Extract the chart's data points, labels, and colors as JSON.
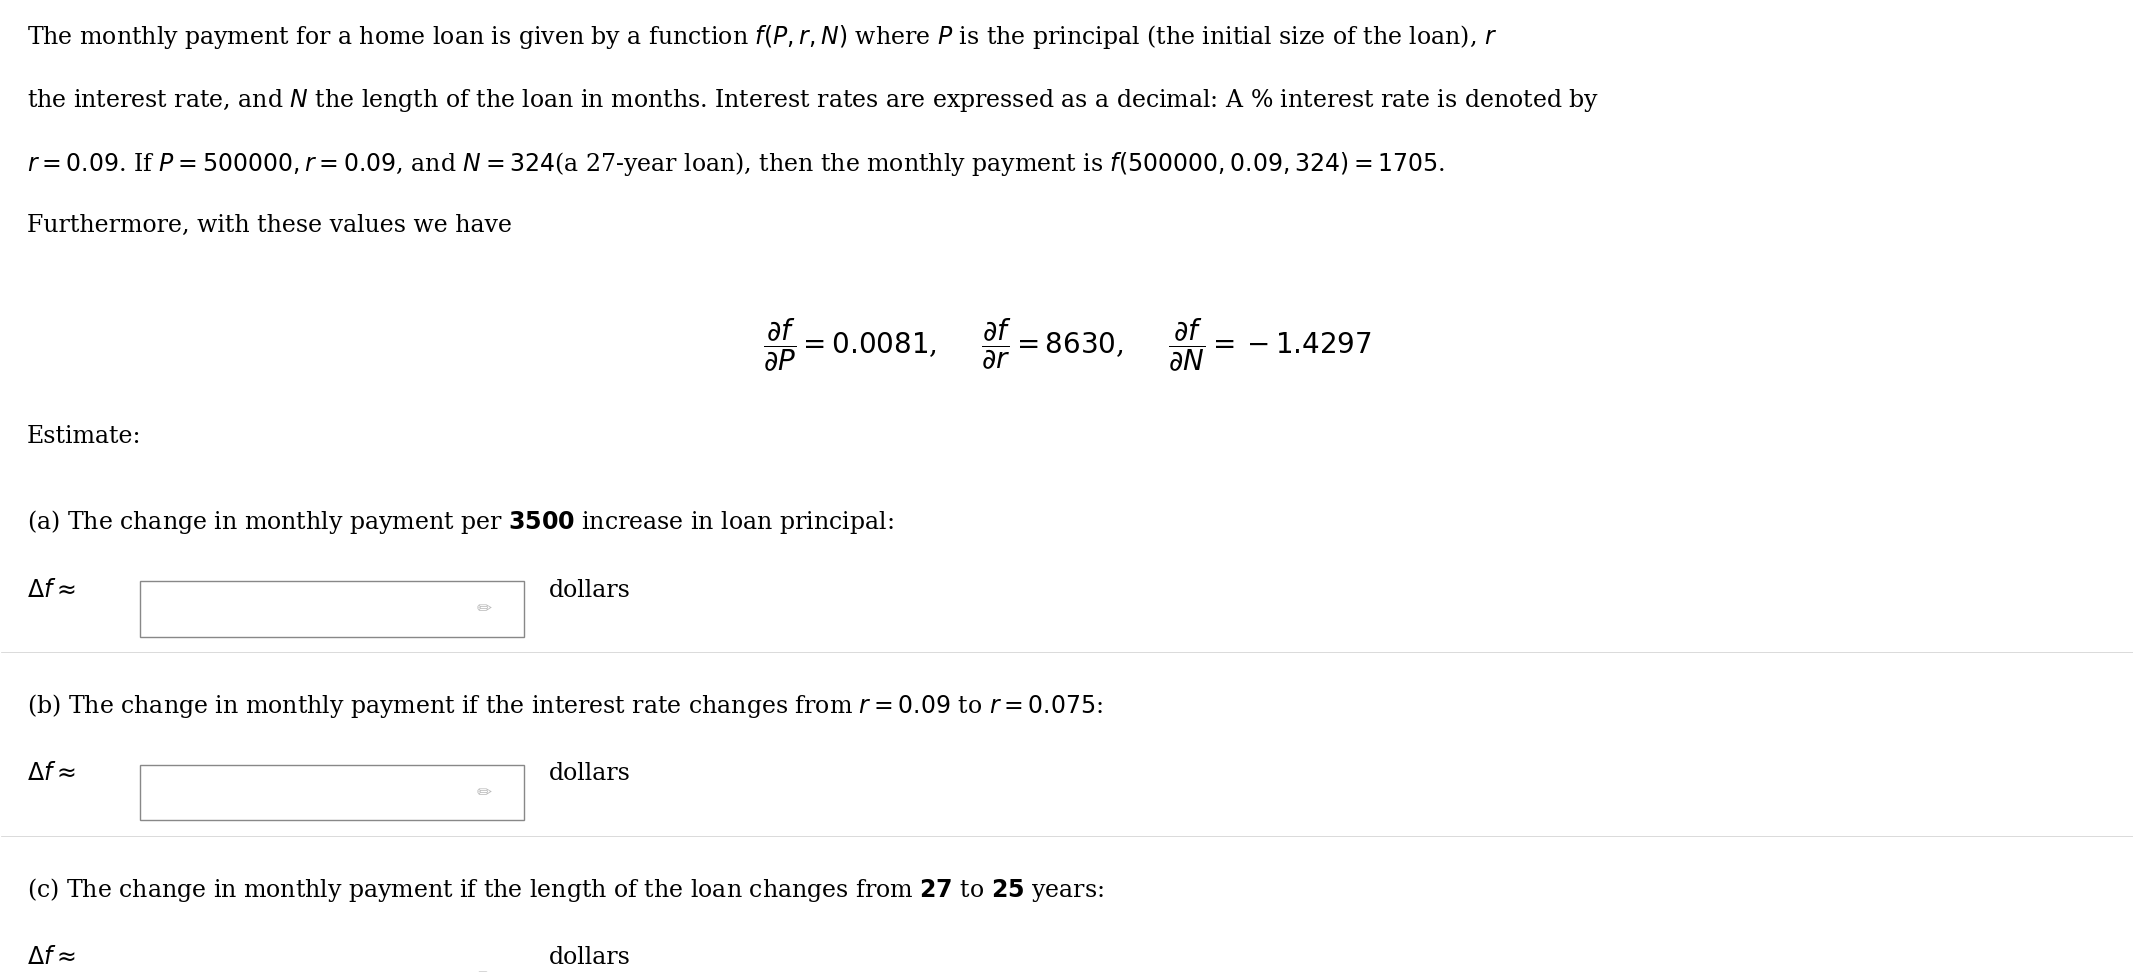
{
  "background_color": "#ffffff",
  "figsize": [
    21.34,
    9.72
  ],
  "dpi": 100,
  "paragraph1": "The monthly payment for a home loan is given by a function $f(P, r, N)$ where $P$ is the principal (the initial size of the loan), $r$",
  "paragraph2": "the interest rate, and $N$ the length of the loan in months. Interest rates are expressed as a decimal: A % interest rate is denoted by",
  "paragraph3": "$r = 0.09$. If $P = 500000, r = 0.09$, and $N = 324$(a 27-year loan), then the monthly payment is $f(500000, 0.09, 324) = 1705$.",
  "paragraph4": "Furthermore, with these values we have",
  "font_size_body": 17,
  "font_size_partial": 20,
  "text_color": "#000000",
  "box_color": "#ffffff",
  "box_edge_color": "#888888",
  "pencil_color": "#bbbbbb"
}
